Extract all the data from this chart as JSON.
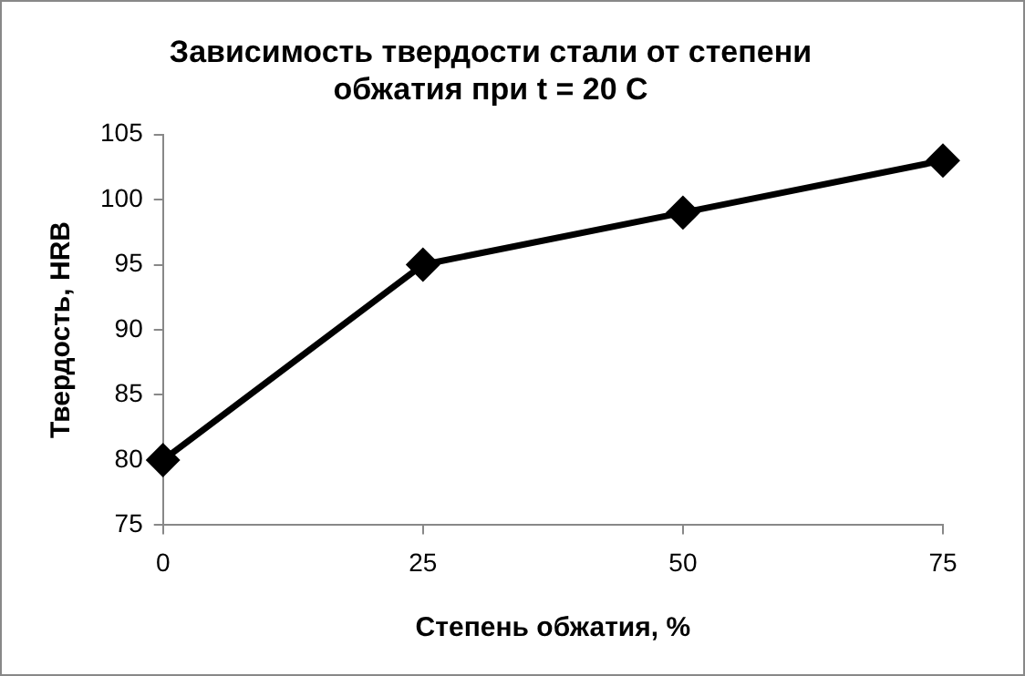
{
  "chart_data": {
    "type": "line",
    "title": "Зависимость твердости стали от степени\nобжатия при t = 20 C",
    "xlabel": "Степень обжатия, %",
    "ylabel": "Твердость, HRB",
    "x": [
      0,
      25,
      50,
      75
    ],
    "series": [
      {
        "color": "#000000",
        "values": [
          80,
          95,
          99,
          103
        ]
      }
    ],
    "xlim": [
      0,
      75
    ],
    "xticks": [
      0,
      25,
      50,
      75
    ],
    "ylim": [
      75,
      105
    ],
    "yticks": [
      75,
      80,
      85,
      90,
      95,
      100,
      105
    ],
    "grid": false,
    "legend": false,
    "marker": "diamond",
    "line_style": "solid"
  }
}
